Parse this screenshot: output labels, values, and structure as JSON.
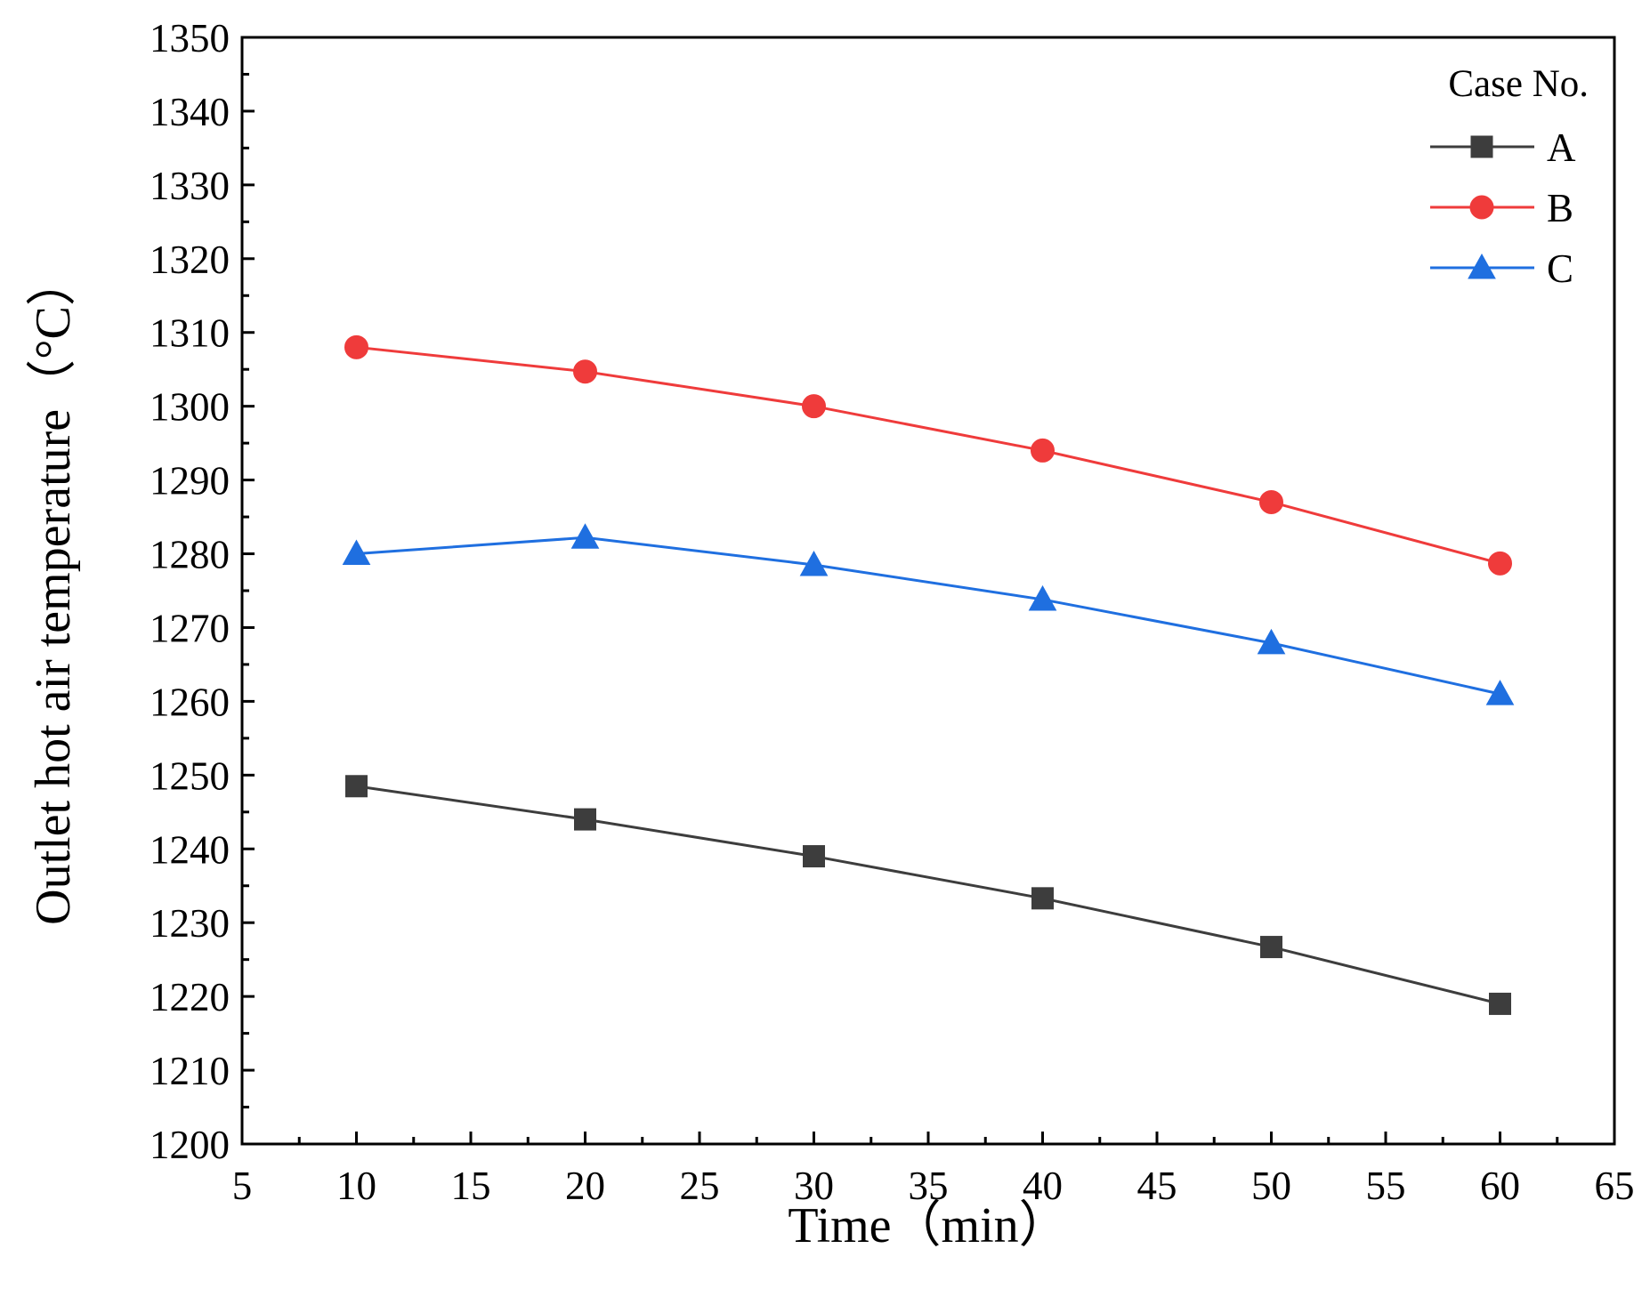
{
  "chart_data": {
    "type": "line",
    "xlabel": "Time（min）",
    "ylabel": "Outlet hot air temperature（°C）",
    "xlim": [
      5,
      65
    ],
    "ylim": [
      1200,
      1350
    ],
    "x_ticks": [
      5,
      10,
      15,
      20,
      25,
      30,
      35,
      40,
      45,
      50,
      55,
      60,
      65
    ],
    "y_ticks": [
      1200,
      1210,
      1220,
      1230,
      1240,
      1250,
      1260,
      1270,
      1280,
      1290,
      1300,
      1310,
      1320,
      1330,
      1340,
      1350
    ],
    "grid": false,
    "legend": {
      "title": "Case No.",
      "placement": "top-right"
    },
    "x": [
      10,
      20,
      30,
      40,
      50,
      60
    ],
    "series": [
      {
        "name": "A",
        "values": [
          1248.5,
          1244,
          1239,
          1233.3,
          1226.7,
          1219
        ],
        "color": "#3d3d3d",
        "marker": "square"
      },
      {
        "name": "B",
        "values": [
          1308,
          1304.7,
          1300,
          1294,
          1287,
          1278.7
        ],
        "color": "#ef3b3b",
        "marker": "circle"
      },
      {
        "name": "C",
        "values": [
          1280,
          1282.2,
          1278.5,
          1273.8,
          1267.9,
          1261
        ],
        "color": "#1f6fe0",
        "marker": "triangle"
      }
    ]
  }
}
